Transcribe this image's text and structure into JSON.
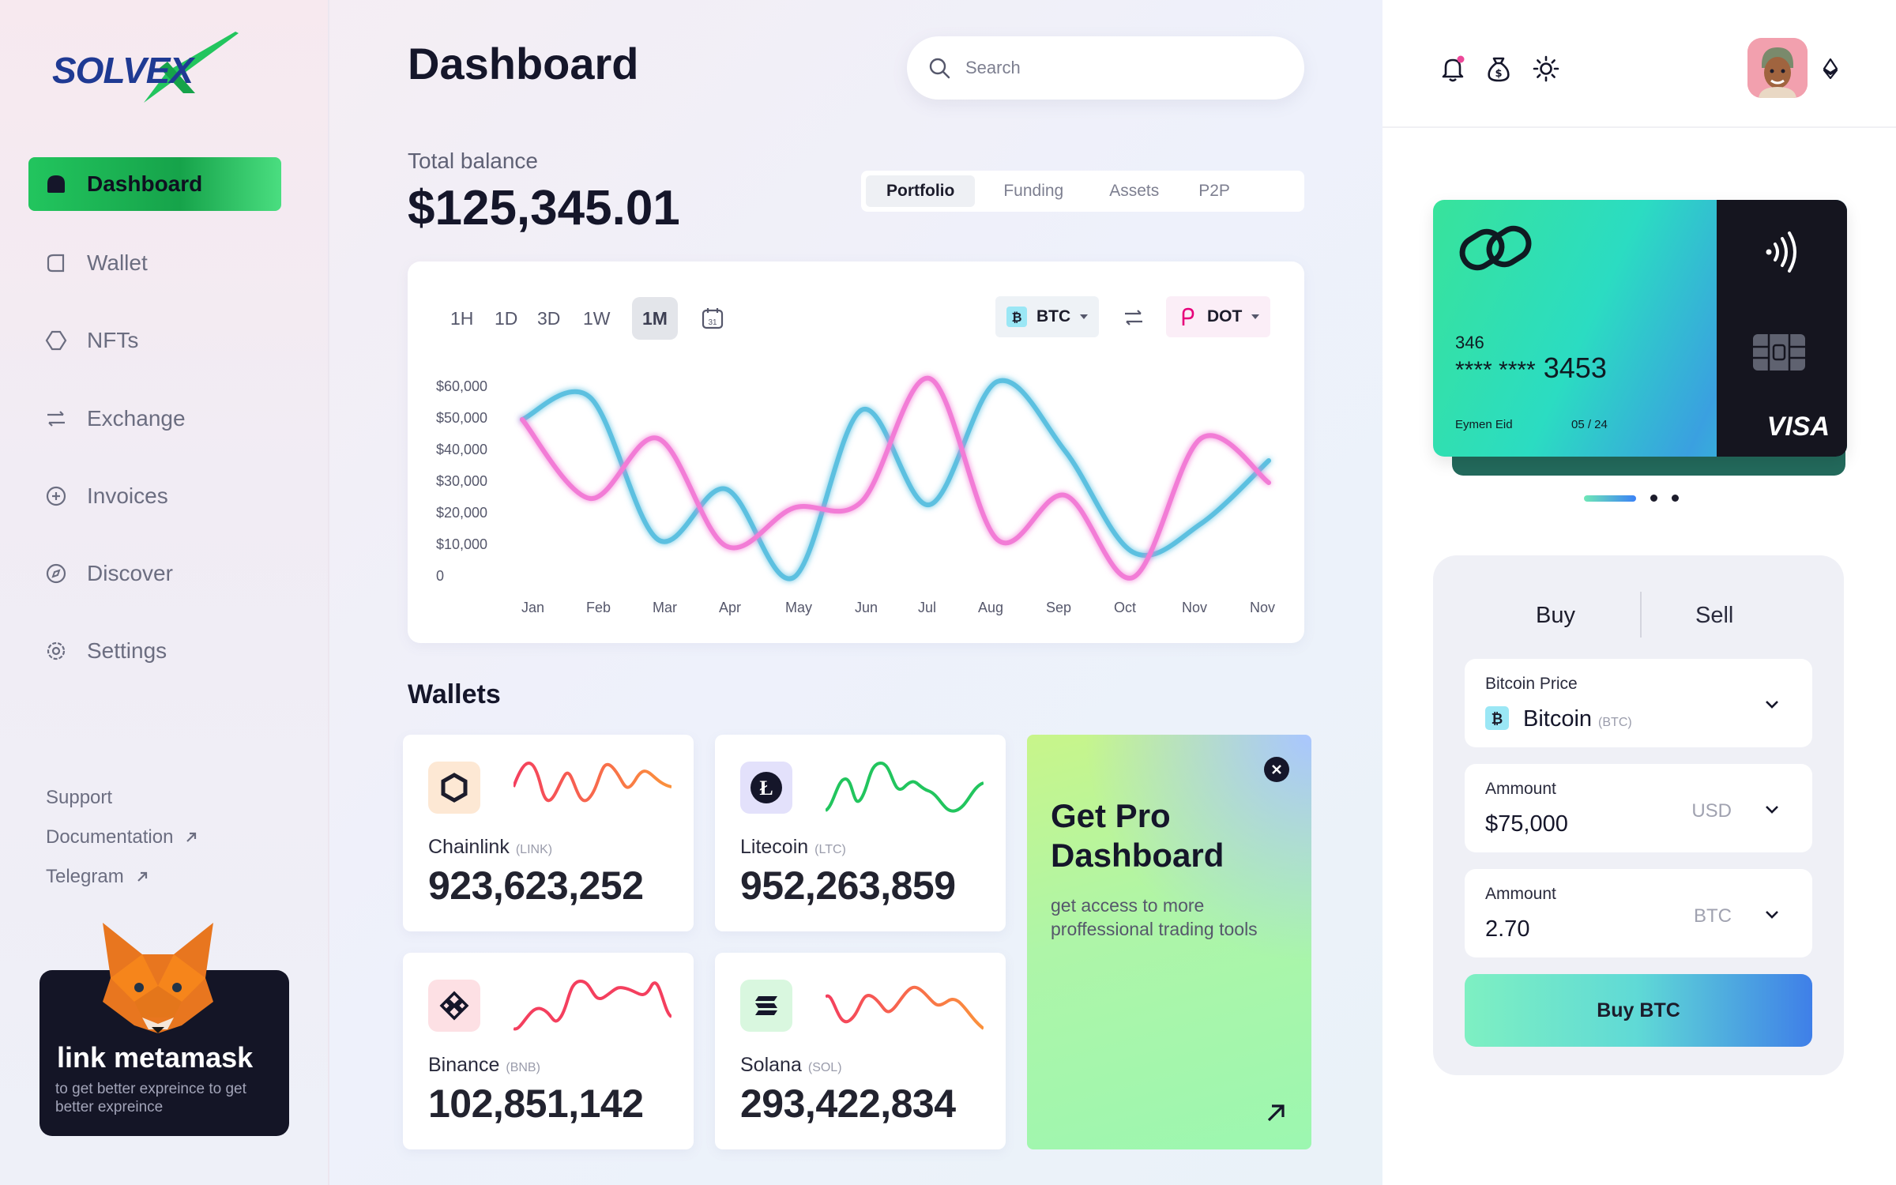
{
  "brand": {
    "name": "SOLVEX"
  },
  "sidebar": {
    "items": [
      {
        "label": "Dashboard",
        "icon": "dashboard-icon",
        "active": true
      },
      {
        "label": "Wallet",
        "icon": "wallet-icon"
      },
      {
        "label": "NFTs",
        "icon": "nft-icon"
      },
      {
        "label": "Exchange",
        "icon": "exchange-icon"
      },
      {
        "label": "Invoices",
        "icon": "invoice-icon"
      },
      {
        "label": "Discover",
        "icon": "discover-icon"
      },
      {
        "label": "Settings",
        "icon": "settings-icon"
      }
    ],
    "links": [
      {
        "label": "Support"
      },
      {
        "label": "Documentation",
        "external": true
      },
      {
        "label": "Telegram",
        "external": true
      }
    ],
    "metamask": {
      "title": "link metamask",
      "subtitle": "to get better expreince to get better expreince"
    }
  },
  "header": {
    "title": "Dashboard",
    "search_placeholder": "Search"
  },
  "balance": {
    "label": "Total balance",
    "value": "$125,345.01"
  },
  "segments": [
    {
      "label": "Portfolio",
      "active": true
    },
    {
      "label": "Funding"
    },
    {
      "label": "Assets"
    },
    {
      "label": "P2P"
    }
  ],
  "chart": {
    "timeframes": [
      "1H",
      "1D",
      "3D",
      "1W",
      "1M"
    ],
    "active_timeframe": "1M",
    "pair_a": "BTC",
    "pair_b": "DOT"
  },
  "chart_data": {
    "type": "line",
    "title": "",
    "xlabel": "",
    "ylabel": "",
    "categories": [
      "Jan",
      "Feb",
      "Mar",
      "Apr",
      "May",
      "Jun",
      "Jul",
      "Aug",
      "Sep",
      "Oct",
      "Nov",
      "Nov"
    ],
    "y_ticks": [
      "$60,000",
      "$50,000",
      "$40,000",
      "$30,000",
      "$20,000",
      "$10,000",
      "0"
    ],
    "ylim": [
      0,
      60000
    ],
    "grid": false,
    "series": [
      {
        "color": "#5bc0e0",
        "values": [
          50000,
          57000,
          12000,
          28000,
          0,
          53000,
          23000,
          62000,
          40000,
          8000,
          17000,
          37000
        ]
      },
      {
        "color": "#f27bd6",
        "values": [
          50000,
          25000,
          44000,
          10000,
          22000,
          24000,
          63000,
          12000,
          26000,
          0,
          44000,
          30000
        ]
      }
    ]
  },
  "wallets": {
    "title": "Wallets",
    "items": [
      {
        "name": "Chainlink",
        "ticker": "(LINK)",
        "amount": "923,623,252",
        "icon_bg": "#fde8d4",
        "spark_from": "#f43f5e",
        "spark_to": "#fb923c"
      },
      {
        "name": "Litecoin",
        "ticker": "(LTC)",
        "amount": "952,263,859",
        "icon_bg": "#e3e1fb",
        "spark_from": "#22c55e",
        "spark_to": "#16a34a"
      },
      {
        "name": "Binance",
        "ticker": "(BNB)",
        "amount": "102,851,142",
        "icon_bg": "#fde0e4",
        "spark_from": "#f43f5e",
        "spark_to": "#e11d48"
      },
      {
        "name": "Solana",
        "ticker": "(SOL)",
        "amount": "293,422,834",
        "icon_bg": "#d9f7df",
        "spark_from": "#f43f5e",
        "spark_to": "#fb923c"
      }
    ]
  },
  "promo": {
    "title": "Get Pro Dashboard",
    "subtitle": "get access to more proffessional trading tools"
  },
  "card": {
    "number_prefix": "346",
    "number_masked": "**** ****",
    "number_last": "3453",
    "holder": "Eymen Eid",
    "expiry": "05 / 24",
    "network": "VISA"
  },
  "trade": {
    "tabs": [
      "Buy",
      "Sell"
    ],
    "price_label": "Bitcoin Price",
    "coin_name": "Bitcoin",
    "coin_ticker": "(BTC)",
    "amount_label_1": "Ammount",
    "amount_value_1": "$75,000",
    "amount_unit_1": "USD",
    "amount_label_2": "Ammount",
    "amount_value_2": "2.70",
    "amount_unit_2": "BTC",
    "button": "Buy BTC"
  }
}
